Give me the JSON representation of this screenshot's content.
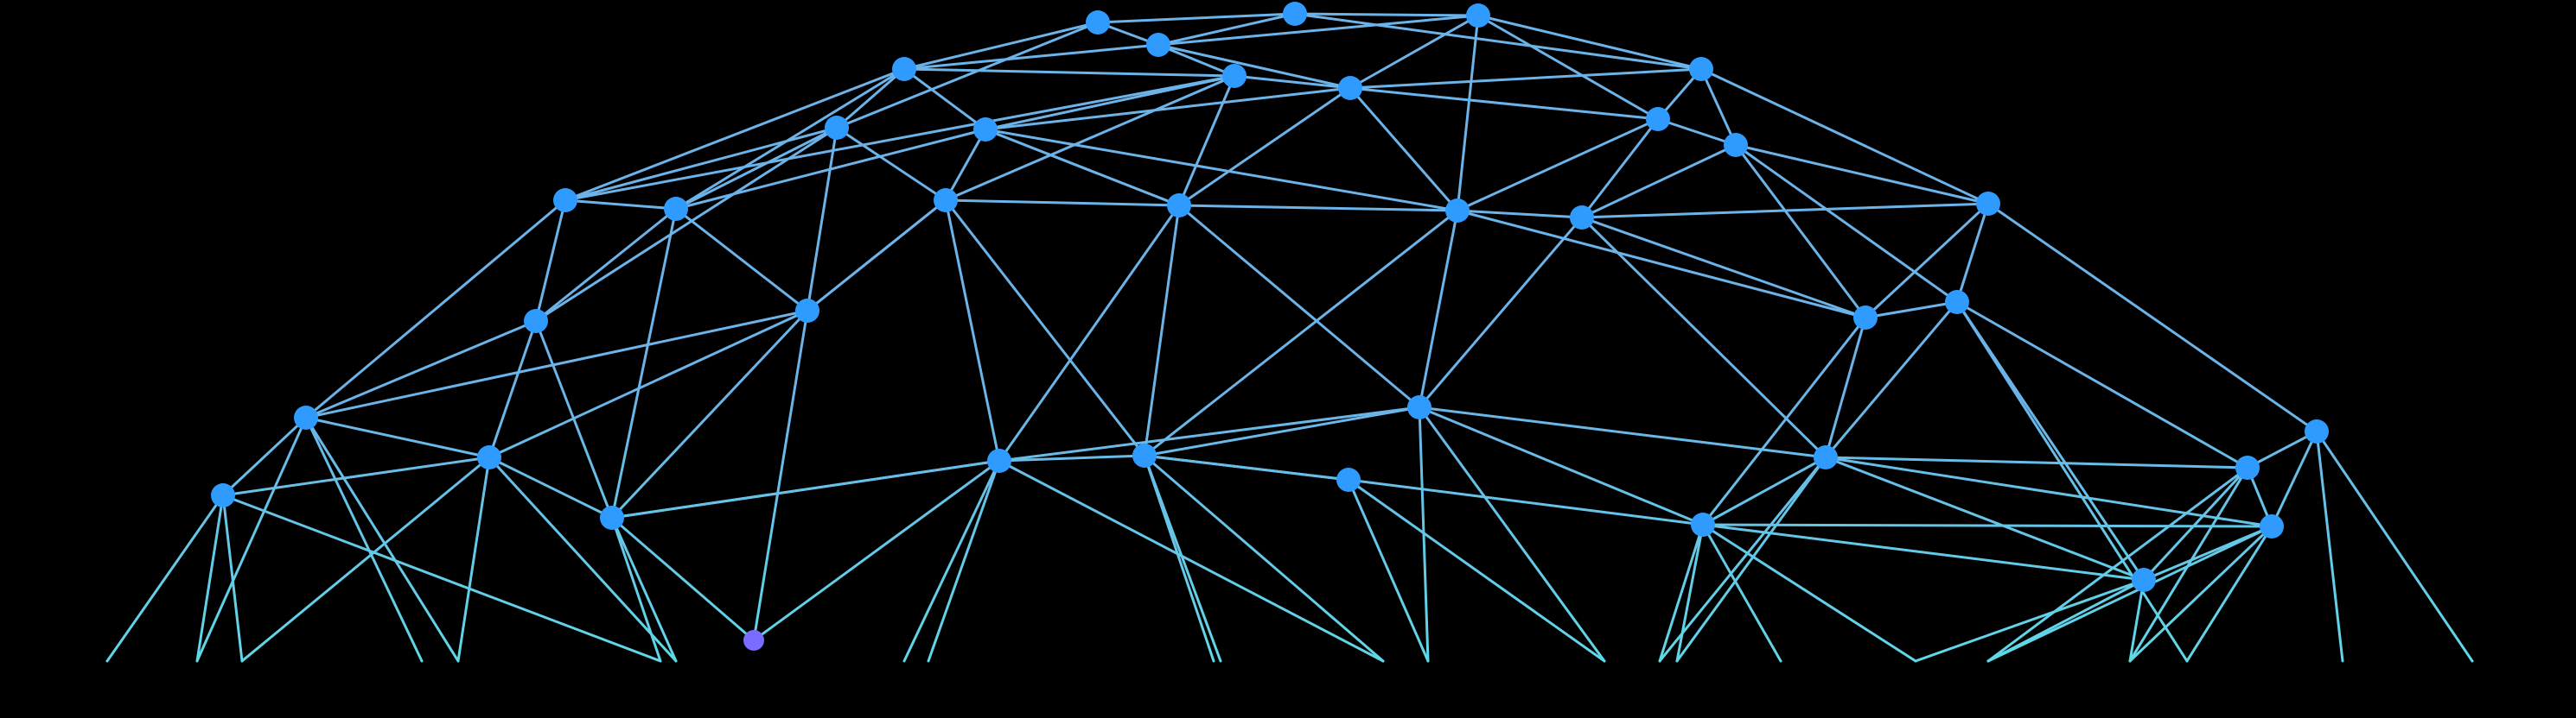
{
  "graphic": {
    "background_color": "#000000",
    "line_color": "#6bb3e8",
    "line_color_bottom": "#5de0e6",
    "node_color": "#2f9bff",
    "accent_node_color": "#7a6cff"
  }
}
